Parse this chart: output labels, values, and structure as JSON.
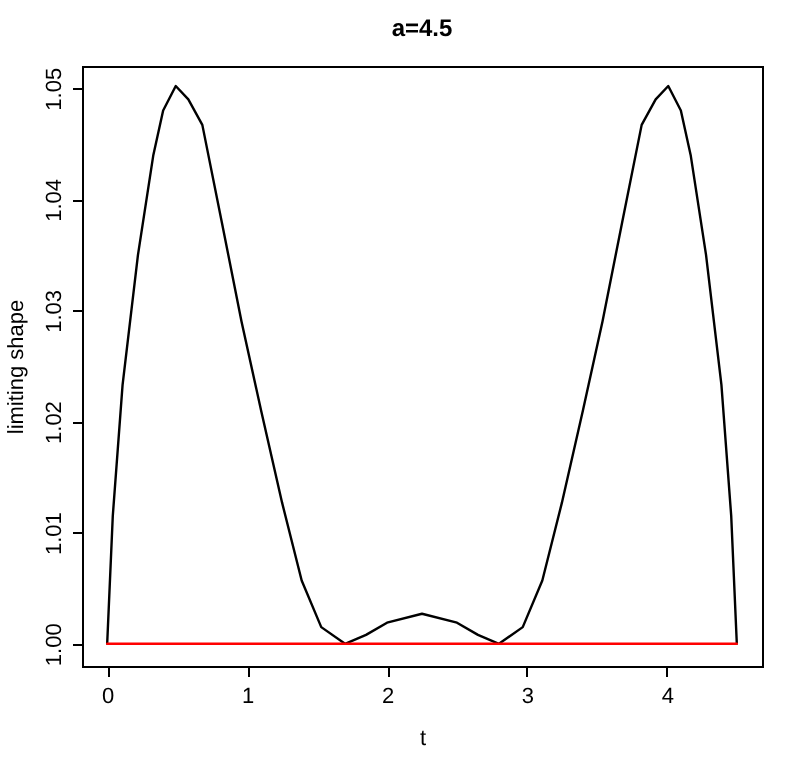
{
  "chart_data": {
    "type": "line",
    "title": "a=4.5",
    "xlabel": "t",
    "ylabel": "limiting shape",
    "xlim": [
      -0.18,
      4.68
    ],
    "ylim": [
      0.998,
      1.052
    ],
    "xticks": [
      0,
      1,
      2,
      3,
      4
    ],
    "yticks": [
      {
        "value": 1.0,
        "label": "1.00"
      },
      {
        "value": 1.01,
        "label": "1.01"
      },
      {
        "value": 1.02,
        "label": "1.02"
      },
      {
        "value": 1.03,
        "label": "1.03"
      },
      {
        "value": 1.04,
        "label": "1.04"
      },
      {
        "value": 1.05,
        "label": "1.05"
      }
    ],
    "grid": false,
    "marker": "none",
    "line_style": "solid",
    "series": [
      {
        "color": "#000000",
        "x": [
          0,
          0.04,
          0.11,
          0.22,
          0.33,
          0.4,
          0.49,
          0.58,
          0.68,
          0.82,
          0.96,
          1.1,
          1.25,
          1.39,
          1.53,
          1.7,
          1.85,
          2.0,
          2.25,
          2.5,
          2.65,
          2.8,
          2.97,
          3.11,
          3.25,
          3.4,
          3.54,
          3.68,
          3.82,
          3.92,
          4.01,
          4.1,
          4.17,
          4.28,
          4.39,
          4.46,
          4.5
        ],
        "values": [
          1.0,
          1.0115,
          1.0233,
          1.035,
          1.044,
          1.048,
          1.0502,
          1.049,
          1.0467,
          1.0379,
          1.029,
          1.021,
          1.0127,
          1.0057,
          1.0015,
          1.0,
          1.0008,
          1.0019,
          1.0027,
          1.0019,
          1.0008,
          1.0,
          1.0015,
          1.0057,
          1.0127,
          1.021,
          1.029,
          1.0379,
          1.0467,
          1.049,
          1.0502,
          1.048,
          1.044,
          1.035,
          1.0233,
          1.0115,
          1.0
        ]
      },
      {
        "color": "#ff0000",
        "x": [
          0,
          4.5
        ],
        "values": [
          1.0,
          1.0
        ]
      }
    ]
  }
}
